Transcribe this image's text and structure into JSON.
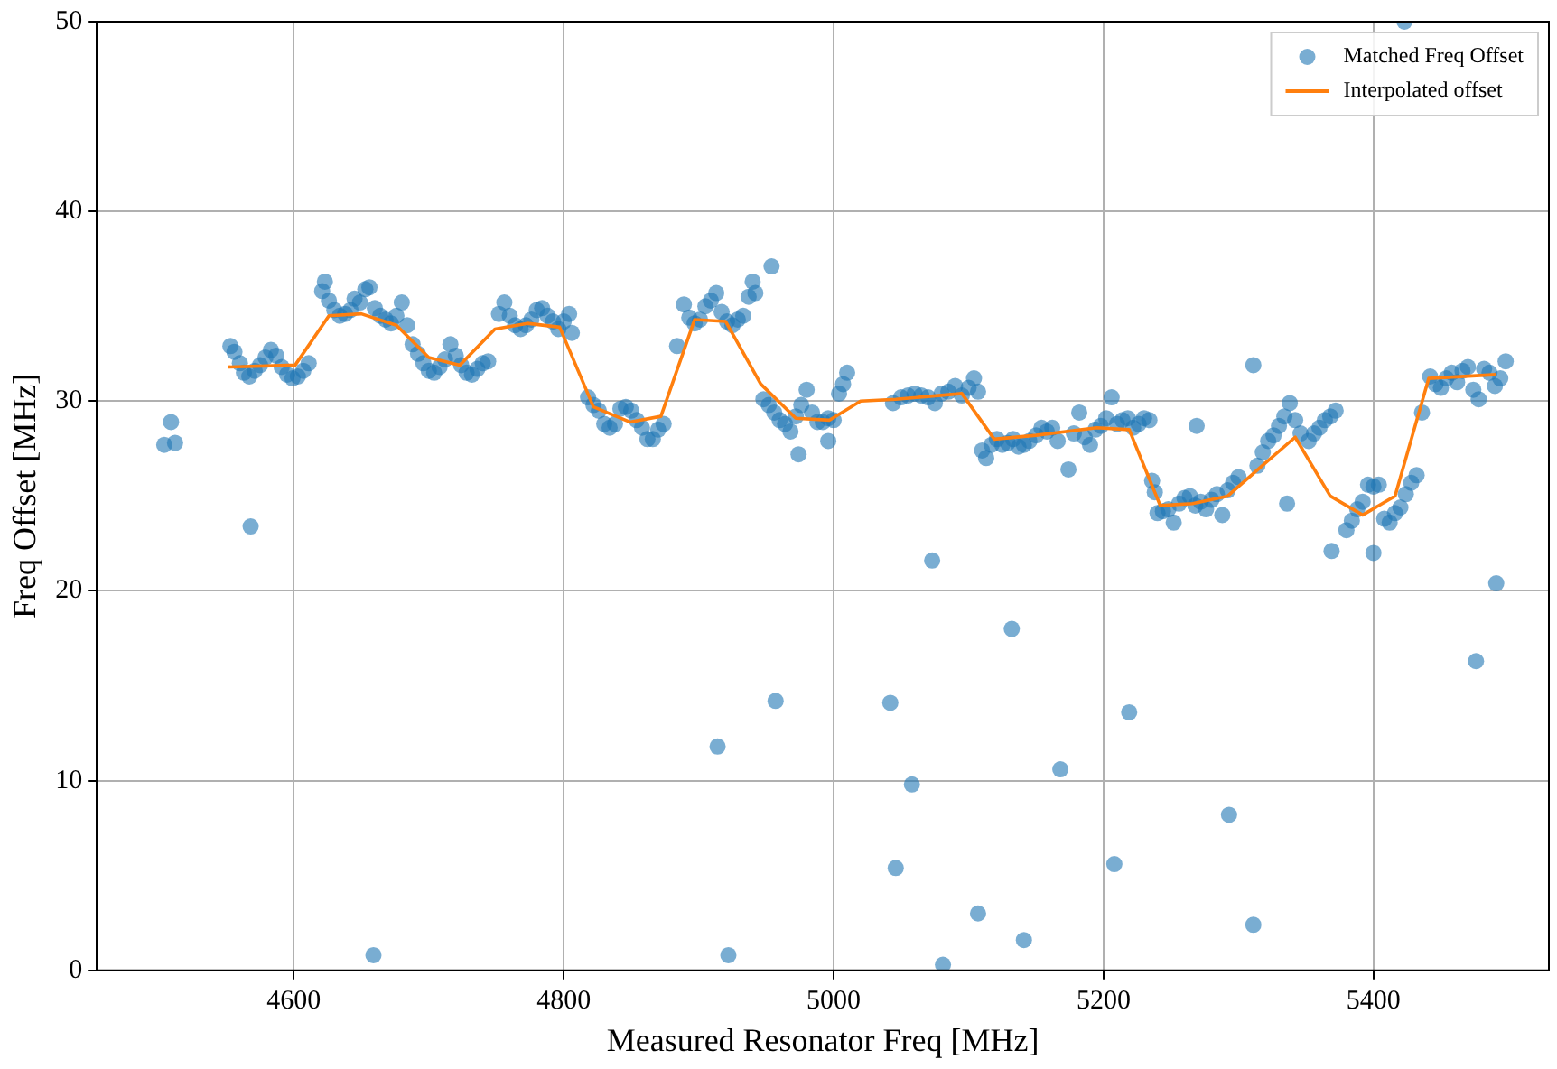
{
  "chart_data": {
    "type": "scatter",
    "xlabel": "Measured Resonator Freq [MHz]",
    "ylabel": "Freq Offset [MHz]",
    "xlim": [
      4454,
      5530
    ],
    "ylim": [
      0,
      50
    ],
    "xticks": [
      4600,
      4800,
      5000,
      5200,
      5400
    ],
    "yticks": [
      0,
      10,
      20,
      30,
      40,
      50
    ],
    "grid": true,
    "legend": "top right",
    "marker": "circle",
    "series": [
      {
        "name": "Matched Freq Offset",
        "color": "#1f77b4",
        "x": [
          4504,
          4509,
          4512,
          4568,
          4659,
          4914,
          4957,
          4922,
          5073,
          5132,
          5042,
          5219,
          5168,
          5058,
          5293,
          5046,
          5208,
          5107,
          5311,
          5141,
          5081,
          5476,
          5491,
          5369,
          5400,
          5311,
          4954,
          5423,
          5336,
          5269,
          5174,
          4974,
          4996,
          4884,
          4553,
          4556,
          4560,
          4563,
          4567,
          4571,
          4575,
          4579,
          4583,
          4587,
          4591,
          4595,
          4599,
          4603,
          4607,
          4611,
          4621,
          4623,
          4626,
          4630,
          4634,
          4638,
          4642,
          4645,
          4649,
          4653,
          4656,
          4660,
          4664,
          4668,
          4672,
          4676,
          4680,
          4684,
          4688,
          4692,
          4696,
          4700,
          4704,
          4708,
          4712,
          4716,
          4720,
          4724,
          4728,
          4732,
          4736,
          4740,
          4744,
          4752,
          4756,
          4760,
          4764,
          4768,
          4772,
          4776,
          4780,
          4784,
          4788,
          4792,
          4796,
          4800,
          4804,
          4806,
          4818,
          4822,
          4826,
          4830,
          4834,
          4838,
          4842,
          4846,
          4850,
          4854,
          4858,
          4862,
          4866,
          4870,
          4874,
          4889,
          4893,
          4897,
          4901,
          4905,
          4909,
          4913,
          4917,
          4921,
          4925,
          4929,
          4933,
          4937,
          4940,
          4942,
          4948,
          4952,
          4956,
          4960,
          4964,
          4968,
          4972,
          4976,
          4980,
          4984,
          4988,
          4992,
          4996,
          5000,
          5004,
          5007,
          5010,
          5044,
          5050,
          5055,
          5060,
          5065,
          5070,
          5075,
          5080,
          5085,
          5090,
          5095,
          5100,
          5104,
          5107,
          5110,
          5113,
          5117,
          5121,
          5125,
          5129,
          5133,
          5137,
          5141,
          5145,
          5150,
          5154,
          5158,
          5162,
          5166,
          5178,
          5182,
          5186,
          5190,
          5194,
          5198,
          5202,
          5206,
          5210,
          5214,
          5218,
          5222,
          5226,
          5230,
          5234,
          5236,
          5238,
          5240,
          5244,
          5248,
          5252,
          5256,
          5260,
          5264,
          5268,
          5272,
          5276,
          5280,
          5284,
          5288,
          5292,
          5296,
          5300,
          5314,
          5318,
          5322,
          5326,
          5330,
          5334,
          5338,
          5342,
          5346,
          5352,
          5356,
          5360,
          5364,
          5368,
          5372,
          5380,
          5384,
          5388,
          5392,
          5396,
          5400,
          5404,
          5408,
          5412,
          5416,
          5420,
          5424,
          5428,
          5432,
          5436,
          5442,
          5446,
          5450,
          5454,
          5458,
          5462,
          5466,
          5470,
          5474,
          5478,
          5482,
          5486,
          5490,
          5494,
          5498
        ],
        "values": [
          27.7,
          28.9,
          27.8,
          23.4,
          0.8,
          11.8,
          14.2,
          0.8,
          21.6,
          18.0,
          14.1,
          13.6,
          10.6,
          9.8,
          8.2,
          5.4,
          5.6,
          3.0,
          2.4,
          1.6,
          0.3,
          16.3,
          20.4,
          22.1,
          22.0,
          31.9,
          37.1,
          50.0,
          24.6,
          28.7,
          26.4,
          27.2,
          27.9,
          32.9,
          32.9,
          32.6,
          32.0,
          31.5,
          31.3,
          31.6,
          31.9,
          32.3,
          32.7,
          32.4,
          31.8,
          31.4,
          31.2,
          31.3,
          31.6,
          32.0,
          35.8,
          36.3,
          35.3,
          34.8,
          34.5,
          34.6,
          34.8,
          35.4,
          35.2,
          35.9,
          36.0,
          34.9,
          34.5,
          34.3,
          34.1,
          34.5,
          35.2,
          34.0,
          33.0,
          32.5,
          32.0,
          31.6,
          31.5,
          31.8,
          32.2,
          33.0,
          32.4,
          31.9,
          31.5,
          31.4,
          31.7,
          32.0,
          32.1,
          34.6,
          35.2,
          34.5,
          34.0,
          33.8,
          34.0,
          34.3,
          34.8,
          34.9,
          34.5,
          34.2,
          33.8,
          34.2,
          34.6,
          33.6,
          30.2,
          29.8,
          29.5,
          28.8,
          28.6,
          28.8,
          29.6,
          29.7,
          29.5,
          29.0,
          28.6,
          28.0,
          28.0,
          28.5,
          28.8,
          35.1,
          34.4,
          34.1,
          34.3,
          35.0,
          35.3,
          35.7,
          34.7,
          34.2,
          34.0,
          34.3,
          34.5,
          35.5,
          36.3,
          35.7,
          30.1,
          29.8,
          29.4,
          29.0,
          28.8,
          28.4,
          29.2,
          29.8,
          30.6,
          29.4,
          28.9,
          28.9,
          29.1,
          29.0,
          30.4,
          30.9,
          31.5,
          29.9,
          30.2,
          30.3,
          30.4,
          30.3,
          30.2,
          29.9,
          30.4,
          30.5,
          30.8,
          30.3,
          30.7,
          31.2,
          30.5,
          27.4,
          27.0,
          27.7,
          28.0,
          27.7,
          27.8,
          28.0,
          27.6,
          27.7,
          27.9,
          28.2,
          28.6,
          28.4,
          28.6,
          27.9,
          28.3,
          29.4,
          28.1,
          27.7,
          28.5,
          28.7,
          29.1,
          30.2,
          28.8,
          29.0,
          29.1,
          28.6,
          28.8,
          29.1,
          29.0,
          25.8,
          25.2,
          24.1,
          24.2,
          24.3,
          23.6,
          24.6,
          24.9,
          25.0,
          24.5,
          24.7,
          24.3,
          24.8,
          25.1,
          24.0,
          25.3,
          25.7,
          26.0,
          26.6,
          27.3,
          27.9,
          28.2,
          28.7,
          29.2,
          29.9,
          29.0,
          28.3,
          27.9,
          28.3,
          28.6,
          29.0,
          29.2,
          29.5,
          23.2,
          23.7,
          24.3,
          24.7,
          25.6,
          25.5,
          25.6,
          23.8,
          23.6,
          24.1,
          24.4,
          25.1,
          25.7,
          26.1,
          29.4,
          31.3,
          30.9,
          30.7,
          31.2,
          31.5,
          31.0,
          31.6,
          31.8,
          30.6,
          30.1,
          31.7,
          31.5,
          30.8,
          31.2,
          32.1
        ]
      },
      {
        "name": "Interpolated offset",
        "type": "line",
        "color": "#ff7f0e",
        "marker": "none",
        "line_style": "solid",
        "x": [
          4551,
          4601,
          4626,
          4650,
          4676,
          4700,
          4723,
          4749,
          4773,
          4797,
          4822,
          4849,
          4872,
          4897,
          4920,
          4946,
          4972,
          4997,
          5020,
          5046,
          5095,
          5119,
          5150,
          5195,
          5219,
          5242,
          5266,
          5292,
          5316,
          5342,
          5368,
          5392,
          5416,
          5441,
          5491
        ],
        "values": [
          31.8,
          31.9,
          34.5,
          34.6,
          34.0,
          32.3,
          31.9,
          33.8,
          34.1,
          33.9,
          29.7,
          28.9,
          29.2,
          34.3,
          34.2,
          30.9,
          29.1,
          29.0,
          30.0,
          30.1,
          30.4,
          28.0,
          28.2,
          28.6,
          28.5,
          24.5,
          24.6,
          25.0,
          26.5,
          28.1,
          25.0,
          24.0,
          25.0,
          31.2,
          31.4
        ]
      }
    ]
  }
}
